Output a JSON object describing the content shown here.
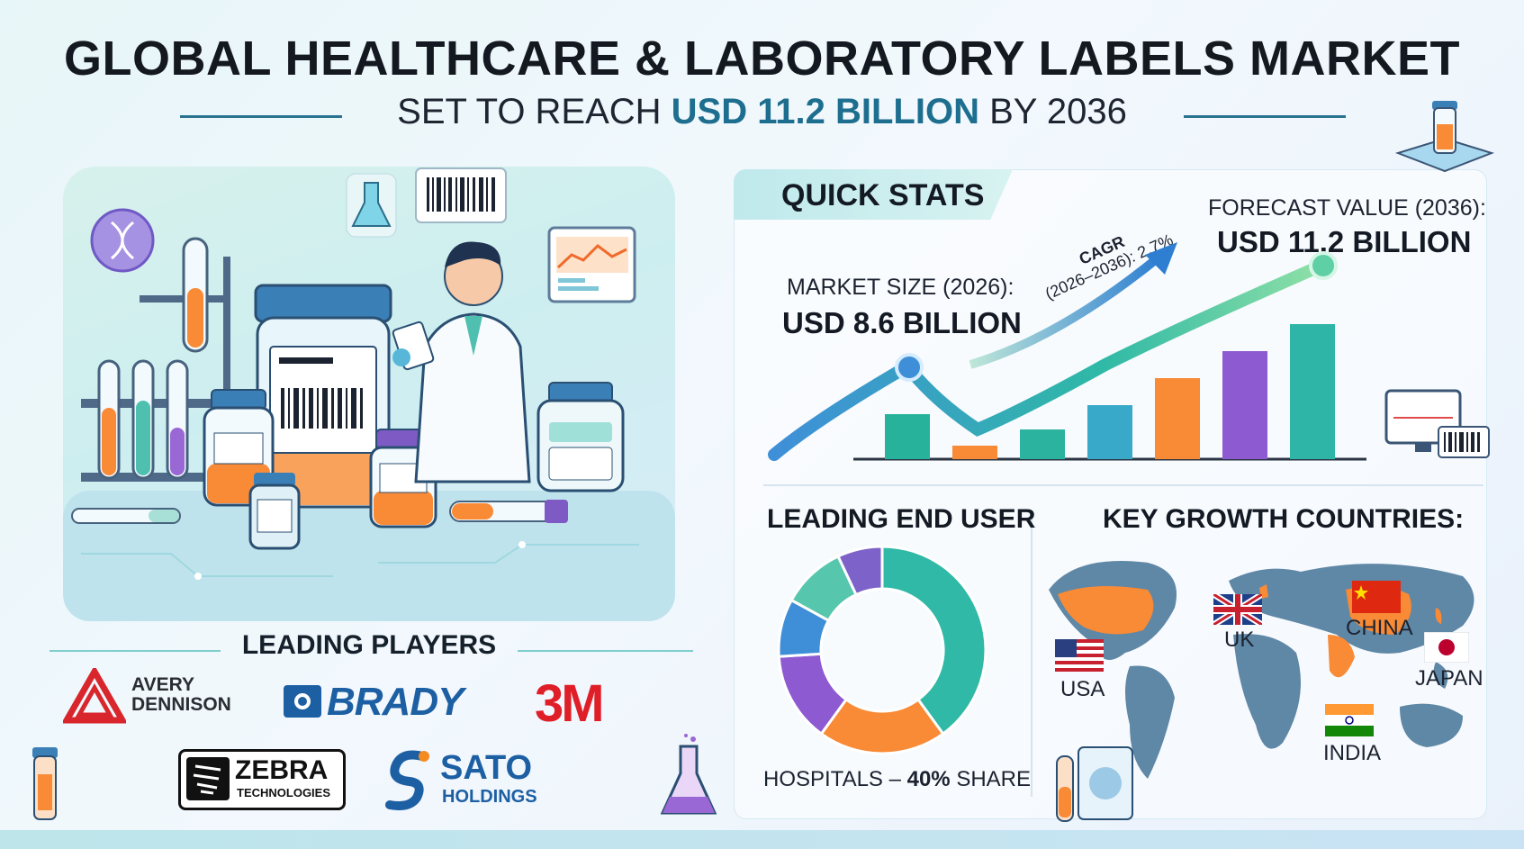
{
  "title": "GLOBAL HEALTHCARE & LABORATORY LABELS MARKET",
  "subtitle": {
    "prefix": "SET TO REACH ",
    "highlight": "USD 11.2 BILLION",
    "suffix": " BY 2036"
  },
  "colors": {
    "accent": "#1e6f8f",
    "teal": "#2bb3a0",
    "orange": "#f98a36",
    "purple": "#8e5ad2",
    "blue": "#3f8fd8"
  },
  "quick_stats": {
    "heading": "QUICK STATS",
    "market_size_label": "MARKET SIZE (2026):",
    "market_size_value": "USD 8.6 BILLION",
    "forecast_label": "FORECAST VALUE (2036):",
    "forecast_value": "USD 11.2 BILLION",
    "cagr_line1": "CAGR",
    "cagr_line2": "(2026–2036): 2.7%"
  },
  "chart_data": {
    "type": "bar",
    "bar_levels": [
      0.5,
      0.15,
      0.33,
      0.6,
      0.9,
      1.2,
      1.5
    ],
    "bar_colors": [
      "#27b39b",
      "#f98a36",
      "#2bb3a0",
      "#38a9c8",
      "#f98a36",
      "#8e5ad2",
      "#2fb5a8"
    ]
  },
  "end_user": {
    "heading": "LEADING END USER",
    "caption_prefix": "HOSPITALS – ",
    "caption_bold": "40%",
    "caption_suffix": " SHARE",
    "slices": [
      {
        "share": 40,
        "color": "#2fb9a6"
      },
      {
        "share": 20,
        "color": "#f98a36"
      },
      {
        "share": 14,
        "color": "#8e5ad2"
      },
      {
        "share": 9,
        "color": "#3f8fd8"
      },
      {
        "share": 10,
        "color": "#56c7ad"
      },
      {
        "share": 7,
        "color": "#7d63c9"
      }
    ]
  },
  "countries": {
    "heading": "KEY GROWTH COUNTRIES:",
    "list": [
      {
        "name": "USA",
        "flag": "usa-flag-icon"
      },
      {
        "name": "UK",
        "flag": "uk-flag-icon"
      },
      {
        "name": "CHINA",
        "flag": "china-flag-icon"
      },
      {
        "name": "JAPAN",
        "flag": "japan-flag-icon"
      },
      {
        "name": "INDIA",
        "flag": "india-flag-icon"
      }
    ]
  },
  "players": {
    "heading": "LEADING PLAYERS",
    "avery_line1": "AVERY",
    "avery_line2": "DENNISON",
    "brady": "BRADY",
    "threem": "3M",
    "zebra_line1": "ZEBRA",
    "zebra_line2": "TECHNOLOGIES",
    "sato_line1": "SATO",
    "sato_line2": "HOLDINGS"
  }
}
